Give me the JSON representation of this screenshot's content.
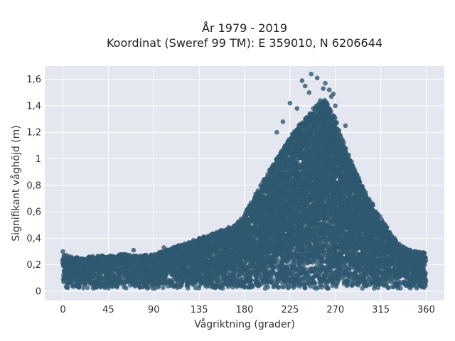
{
  "chart_data": {
    "type": "scatter",
    "title_lines": [
      "År 1979 - 2019",
      "Koordinat (Sweref 99 TM): E 359010, N 6206644"
    ],
    "xlabel": "Vågriktning (grader)",
    "ylabel": "Signifikant våghöjd (m)",
    "xlim": [
      -18,
      378
    ],
    "ylim": [
      -0.07,
      1.7
    ],
    "xticks": [
      0,
      45,
      90,
      135,
      180,
      225,
      270,
      315,
      360
    ],
    "xtick_labels": [
      "0",
      "45",
      "90",
      "135",
      "180",
      "225",
      "270",
      "315",
      "360"
    ],
    "yticks": [
      0,
      0.2,
      0.4,
      0.6,
      0.8,
      1.0,
      1.2,
      1.4,
      1.6
    ],
    "ytick_labels": [
      "0",
      "0,2",
      "0,4",
      "0,6",
      "0,8",
      "1",
      "1,2",
      "1,4",
      "1,6"
    ],
    "grid": true,
    "marker_color": "#2f5870",
    "background_color": "#e5e7f0",
    "envelope": {
      "x": [
        0,
        10,
        20,
        30,
        45,
        60,
        75,
        90,
        105,
        120,
        135,
        150,
        160,
        170,
        180,
        190,
        200,
        210,
        220,
        230,
        240,
        250,
        260,
        270,
        280,
        290,
        300,
        310,
        320,
        330,
        340,
        350,
        360
      ],
      "upper": [
        0.28,
        0.26,
        0.25,
        0.27,
        0.27,
        0.28,
        0.27,
        0.28,
        0.32,
        0.36,
        0.4,
        0.44,
        0.47,
        0.5,
        0.58,
        0.72,
        0.86,
        0.98,
        1.1,
        1.22,
        1.3,
        1.4,
        1.45,
        1.3,
        1.08,
        0.9,
        0.75,
        0.62,
        0.5,
        0.38,
        0.32,
        0.3,
        0.29
      ],
      "min": 0.02
    },
    "outliers": [
      {
        "x": 225,
        "y": 1.42
      },
      {
        "x": 237,
        "y": 1.59
      },
      {
        "x": 240,
        "y": 1.55
      },
      {
        "x": 246,
        "y": 1.64
      },
      {
        "x": 252,
        "y": 1.61
      },
      {
        "x": 260,
        "y": 1.57
      },
      {
        "x": 264,
        "y": 1.52
      },
      {
        "x": 266,
        "y": 1.47
      },
      {
        "x": 255,
        "y": 1.44
      },
      {
        "x": 218,
        "y": 1.28
      },
      {
        "x": 270,
        "y": 1.4
      },
      {
        "x": 232,
        "y": 1.38
      },
      {
        "x": 244,
        "y": 1.5
      },
      {
        "x": 258,
        "y": 1.53
      },
      {
        "x": 268,
        "y": 1.49
      },
      {
        "x": 280,
        "y": 1.25
      },
      {
        "x": 212,
        "y": 1.2
      },
      {
        "x": 70,
        "y": 0.31
      },
      {
        "x": 100,
        "y": 0.33
      },
      {
        "x": 0,
        "y": 0.3
      },
      {
        "x": 350,
        "y": 0.3
      },
      {
        "x": 357,
        "y": 0.29
      }
    ]
  }
}
